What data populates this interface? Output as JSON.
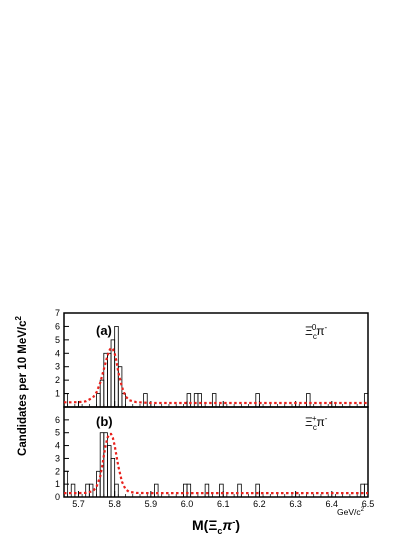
{
  "chart_data": [
    {
      "type": "bar",
      "panel_label": "(a)",
      "channel_label": "Ξc⁰π⁻",
      "channel_base": "Ξ",
      "channel_sub": "c",
      "channel_sup": "0",
      "channel_tail": "π",
      "channel_tail_sup": "-",
      "xlim": [
        5.66,
        6.5
      ],
      "ylim": [
        0,
        7
      ],
      "yticks": [
        "1",
        "2",
        "3",
        "4",
        "5",
        "6",
        "7"
      ],
      "histogram": {
        "bin_width": 0.01,
        "bin_starts": [
          5.66,
          5.67,
          5.68,
          5.69,
          5.7,
          5.71,
          5.72,
          5.73,
          5.74,
          5.75,
          5.76,
          5.77,
          5.78,
          5.79,
          5.8,
          5.81,
          5.82,
          5.83,
          5.84,
          5.85,
          5.86,
          5.87,
          5.88,
          5.89,
          5.9,
          5.91,
          5.92,
          5.93,
          5.94,
          5.95,
          5.96,
          5.97,
          5.98,
          5.99,
          6.0,
          6.01,
          6.02,
          6.03,
          6.04,
          6.05,
          6.06,
          6.07,
          6.08,
          6.09,
          6.1,
          6.11,
          6.12,
          6.13,
          6.14,
          6.15,
          6.16,
          6.17,
          6.18,
          6.19,
          6.2,
          6.21,
          6.22,
          6.23,
          6.24,
          6.25,
          6.26,
          6.27,
          6.28,
          6.29,
          6.3,
          6.31,
          6.32,
          6.33,
          6.34,
          6.35,
          6.36,
          6.37,
          6.38,
          6.39,
          6.4,
          6.41,
          6.42,
          6.43,
          6.44,
          6.45,
          6.46,
          6.47,
          6.48,
          6.49
        ],
        "counts": [
          1,
          0,
          0,
          0,
          0,
          0,
          0,
          0,
          0,
          1,
          2,
          4,
          4,
          5,
          6,
          3,
          1,
          0,
          0,
          0,
          0,
          0,
          1,
          0,
          0,
          0,
          0,
          0,
          0,
          0,
          0,
          0,
          0,
          0,
          1,
          0,
          1,
          1,
          0,
          0,
          0,
          1,
          0,
          0,
          0,
          0,
          0,
          0,
          0,
          0,
          0,
          0,
          0,
          1,
          0,
          0,
          0,
          0,
          0,
          0,
          0,
          0,
          0,
          0,
          0,
          0,
          0,
          1,
          0,
          0,
          0,
          0,
          0,
          0,
          0,
          0,
          0,
          0,
          0,
          0,
          0,
          0,
          0,
          1
        ]
      },
      "fit_curve": {
        "x": [
          5.66,
          5.68,
          5.7,
          5.72,
          5.74,
          5.75,
          5.76,
          5.77,
          5.78,
          5.785,
          5.79,
          5.795,
          5.8,
          5.805,
          5.81,
          5.82,
          5.83,
          5.84,
          5.86,
          5.9,
          6.0,
          6.5
        ],
        "y": [
          0.35,
          0.35,
          0.36,
          0.42,
          0.7,
          1.1,
          1.8,
          2.8,
          3.8,
          4.2,
          4.4,
          4.3,
          4.0,
          3.4,
          2.6,
          1.5,
          0.8,
          0.5,
          0.36,
          0.3,
          0.3,
          0.3
        ]
      }
    },
    {
      "type": "bar",
      "panel_label": "(b)",
      "channel_label": "Ξc⁺π⁻",
      "channel_base": "Ξ",
      "channel_sub": "c",
      "channel_sup": "+",
      "channel_tail": "π",
      "channel_tail_sup": "-",
      "xlim": [
        5.66,
        6.5
      ],
      "ylim": [
        0,
        7
      ],
      "yticks": [
        "0",
        "1",
        "2",
        "3",
        "4",
        "5",
        "6"
      ],
      "histogram": {
        "bin_width": 0.01,
        "bin_starts": [
          5.66,
          5.67,
          5.68,
          5.69,
          5.7,
          5.71,
          5.72,
          5.73,
          5.74,
          5.75,
          5.76,
          5.77,
          5.78,
          5.79,
          5.8,
          5.81,
          5.82,
          5.83,
          5.84,
          5.85,
          5.86,
          5.87,
          5.88,
          5.89,
          5.9,
          5.91,
          5.92,
          5.93,
          5.94,
          5.95,
          5.96,
          5.97,
          5.98,
          5.99,
          6.0,
          6.01,
          6.02,
          6.03,
          6.04,
          6.05,
          6.06,
          6.07,
          6.08,
          6.09,
          6.1,
          6.11,
          6.12,
          6.13,
          6.14,
          6.15,
          6.16,
          6.17,
          6.18,
          6.19,
          6.2,
          6.21,
          6.22,
          6.23,
          6.24,
          6.25,
          6.26,
          6.27,
          6.28,
          6.29,
          6.3,
          6.31,
          6.32,
          6.33,
          6.34,
          6.35,
          6.36,
          6.37,
          6.38,
          6.39,
          6.4,
          6.41,
          6.42,
          6.43,
          6.44,
          6.45,
          6.46,
          6.47,
          6.48,
          6.49
        ],
        "counts": [
          2,
          0,
          1,
          0,
          0,
          0,
          1,
          1,
          0,
          2,
          5,
          5,
          4,
          3,
          1,
          0,
          0,
          0,
          0,
          0,
          0,
          0,
          0,
          0,
          0,
          1,
          0,
          0,
          0,
          0,
          0,
          0,
          0,
          1,
          1,
          0,
          0,
          0,
          0,
          1,
          0,
          0,
          0,
          1,
          0,
          0,
          0,
          0,
          1,
          0,
          0,
          0,
          0,
          1,
          0,
          0,
          0,
          0,
          0,
          0,
          0,
          0,
          0,
          0,
          0,
          0,
          0,
          0,
          0,
          0,
          0,
          0,
          0,
          0,
          0,
          0,
          0,
          0,
          0,
          0,
          0,
          0,
          1,
          1
        ]
      },
      "fit_curve": {
        "x": [
          5.66,
          5.7,
          5.72,
          5.74,
          5.75,
          5.76,
          5.765,
          5.77,
          5.775,
          5.78,
          5.785,
          5.79,
          5.795,
          5.8,
          5.805,
          5.81,
          5.82,
          5.83,
          5.84,
          5.86,
          5.9,
          6.0,
          6.5
        ],
        "y": [
          0.3,
          0.3,
          0.32,
          0.45,
          0.8,
          1.6,
          2.3,
          3.2,
          4.0,
          4.6,
          4.9,
          4.9,
          4.6,
          4.0,
          3.2,
          2.4,
          1.2,
          0.6,
          0.4,
          0.32,
          0.3,
          0.3,
          0.3
        ]
      }
    }
  ],
  "x_ticks": [
    "5.7",
    "5.8",
    "5.9",
    "6.0",
    "6.1",
    "6.2",
    "6.3",
    "6.4",
    "6.5"
  ],
  "x_tick_values": [
    5.7,
    5.8,
    5.9,
    6.0,
    6.1,
    6.2,
    6.3,
    6.4,
    6.5
  ],
  "x_unit_label": "GeV/c",
  "x_unit_sup": "2",
  "x_axis_label": {
    "text": "M(Ξcπ)",
    "lead": "M(",
    "base": "Ξ",
    "sub": "c",
    "pi": "π",
    "pi_sup": "-",
    "close": ")"
  },
  "y_axis_label": {
    "text": "Candidates per 10 MeV/c",
    "sup": "2"
  },
  "colors": {
    "histogram": "#000000",
    "fit": "#e8211c",
    "frame": "#000000"
  }
}
